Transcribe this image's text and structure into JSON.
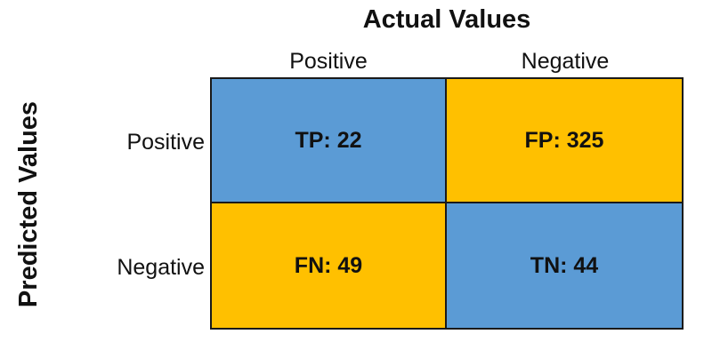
{
  "column_axis": {
    "title": "Actual Values",
    "labels": [
      "Positive",
      "Negative"
    ]
  },
  "row_axis": {
    "title": "Predicted Values",
    "labels": [
      "Positive",
      "Negative"
    ]
  },
  "cells": [
    {
      "text": "TP: 22",
      "color": "#5b9bd5"
    },
    {
      "text": "FP: 325",
      "color": "#ffc000"
    },
    {
      "text": "FN: 49",
      "color": "#ffc000"
    },
    {
      "text": "TN: 44",
      "color": "#5b9bd5"
    }
  ]
}
